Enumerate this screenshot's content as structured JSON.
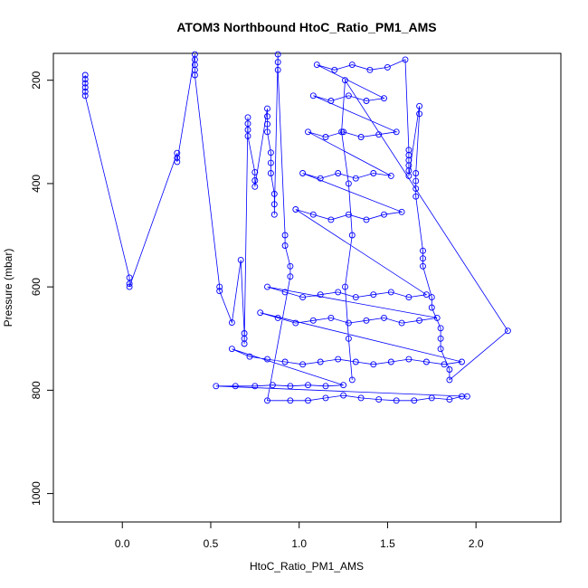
{
  "chart_data": {
    "type": "scatter",
    "title": "ATOM3 Northbound HtoC_Ratio_PM1_AMS",
    "xlabel": "HtoC_Ratio_PM1_AMS",
    "ylabel": "Pressure (mbar)",
    "xlim": [
      -0.39,
      2.48
    ],
    "ylim": [
      1055,
      148
    ],
    "y_reversed": true,
    "x_ticks": [
      0.0,
      0.5,
      1.0,
      1.5,
      2.0
    ],
    "x_tick_labels": [
      "0.0",
      "0.5",
      "1.0",
      "1.5",
      "2.0"
    ],
    "y_ticks": [
      200,
      400,
      600,
      800,
      1000
    ],
    "y_tick_labels": [
      "200",
      "400",
      "600",
      "800",
      "1000"
    ],
    "grid": false,
    "legend": "none",
    "marker": "open-circle",
    "connected": true,
    "series": [
      {
        "color": "#0000ff",
        "points": [
          [
            -0.21,
            190
          ],
          [
            -0.21,
            198
          ],
          [
            -0.21,
            206
          ],
          [
            -0.21,
            214
          ],
          [
            -0.21,
            222
          ],
          [
            -0.21,
            230
          ],
          [
            0.04,
            582
          ],
          [
            0.04,
            594
          ],
          [
            0.04,
            600
          ],
          [
            0.31,
            341
          ],
          [
            0.31,
            350
          ],
          [
            0.31,
            358
          ],
          [
            0.41,
            150
          ],
          [
            0.41,
            160
          ],
          [
            0.41,
            170
          ],
          [
            0.41,
            180
          ],
          [
            0.41,
            190
          ],
          [
            0.55,
            600
          ],
          [
            0.55,
            608
          ],
          [
            0.62,
            669
          ],
          [
            0.67,
            548
          ],
          [
            0.69,
            690
          ],
          [
            0.69,
            700
          ],
          [
            0.69,
            710
          ],
          [
            0.71,
            272
          ],
          [
            0.71,
            284
          ],
          [
            0.71,
            296
          ],
          [
            0.71,
            308
          ],
          [
            0.75,
            378
          ],
          [
            0.75,
            394
          ],
          [
            0.75,
            406
          ],
          [
            0.82,
            255
          ],
          [
            0.82,
            270
          ],
          [
            0.82,
            285
          ],
          [
            0.82,
            300
          ],
          [
            0.84,
            340
          ],
          [
            0.84,
            360
          ],
          [
            0.84,
            380
          ],
          [
            0.86,
            420
          ],
          [
            0.86,
            440
          ],
          [
            0.86,
            460
          ],
          [
            0.88,
            150
          ],
          [
            0.88,
            165
          ],
          [
            0.88,
            180
          ],
          [
            0.92,
            500
          ],
          [
            0.92,
            520
          ],
          [
            0.95,
            560
          ],
          [
            0.95,
            580
          ],
          [
            0.82,
            820
          ],
          [
            0.95,
            820
          ],
          [
            1.05,
            820
          ],
          [
            1.15,
            815
          ],
          [
            1.25,
            810
          ],
          [
            1.35,
            815
          ],
          [
            1.45,
            818
          ],
          [
            1.55,
            820
          ],
          [
            1.65,
            820
          ],
          [
            1.75,
            815
          ],
          [
            1.85,
            818
          ],
          [
            1.92,
            812
          ],
          [
            1.95,
            812
          ],
          [
            0.53,
            792
          ],
          [
            0.64,
            792
          ],
          [
            0.75,
            792
          ],
          [
            0.85,
            790
          ],
          [
            0.95,
            792
          ],
          [
            1.05,
            790
          ],
          [
            1.15,
            792
          ],
          [
            1.25,
            790
          ],
          [
            0.62,
            720
          ],
          [
            0.72,
            735
          ],
          [
            0.82,
            740
          ],
          [
            0.92,
            745
          ],
          [
            1.02,
            750
          ],
          [
            1.12,
            745
          ],
          [
            1.22,
            740
          ],
          [
            1.32,
            745
          ],
          [
            1.42,
            750
          ],
          [
            1.52,
            745
          ],
          [
            1.62,
            740
          ],
          [
            1.72,
            745
          ],
          [
            1.82,
            750
          ],
          [
            1.92,
            745
          ],
          [
            0.78,
            650
          ],
          [
            0.88,
            660
          ],
          [
            0.98,
            670
          ],
          [
            1.08,
            665
          ],
          [
            1.18,
            660
          ],
          [
            1.28,
            670
          ],
          [
            1.38,
            665
          ],
          [
            1.48,
            660
          ],
          [
            1.58,
            670
          ],
          [
            1.68,
            665
          ],
          [
            1.78,
            660
          ],
          [
            0.82,
            600
          ],
          [
            0.92,
            610
          ],
          [
            1.02,
            620
          ],
          [
            1.12,
            615
          ],
          [
            1.22,
            610
          ],
          [
            1.32,
            620
          ],
          [
            1.42,
            615
          ],
          [
            1.52,
            610
          ],
          [
            1.62,
            620
          ],
          [
            1.72,
            615
          ],
          [
            0.98,
            450
          ],
          [
            1.08,
            460
          ],
          [
            1.18,
            470
          ],
          [
            1.28,
            460
          ],
          [
            1.38,
            470
          ],
          [
            1.48,
            460
          ],
          [
            1.58,
            455
          ],
          [
            1.02,
            380
          ],
          [
            1.12,
            390
          ],
          [
            1.22,
            380
          ],
          [
            1.32,
            390
          ],
          [
            1.42,
            380
          ],
          [
            1.52,
            385
          ],
          [
            1.05,
            300
          ],
          [
            1.15,
            310
          ],
          [
            1.25,
            300
          ],
          [
            1.35,
            310
          ],
          [
            1.45,
            305
          ],
          [
            1.55,
            300
          ],
          [
            1.08,
            230
          ],
          [
            1.18,
            240
          ],
          [
            1.28,
            230
          ],
          [
            1.38,
            240
          ],
          [
            1.48,
            235
          ],
          [
            1.1,
            170
          ],
          [
            1.2,
            180
          ],
          [
            1.3,
            170
          ],
          [
            1.4,
            180
          ],
          [
            1.5,
            175
          ],
          [
            1.6,
            160
          ],
          [
            1.62,
            335
          ],
          [
            1.62,
            345
          ],
          [
            1.62,
            355
          ],
          [
            1.62,
            365
          ],
          [
            1.62,
            375
          ],
          [
            1.62,
            385
          ],
          [
            1.68,
            250
          ],
          [
            1.68,
            265
          ],
          [
            1.66,
            380
          ],
          [
            1.66,
            395
          ],
          [
            1.66,
            410
          ],
          [
            1.66,
            425
          ],
          [
            1.7,
            530
          ],
          [
            1.7,
            545
          ],
          [
            1.7,
            560
          ],
          [
            1.75,
            620
          ],
          [
            1.75,
            640
          ],
          [
            1.8,
            680
          ],
          [
            1.8,
            700
          ],
          [
            1.8,
            720
          ],
          [
            1.85,
            760
          ],
          [
            1.85,
            780
          ],
          [
            2.18,
            685
          ],
          [
            1.26,
            200
          ],
          [
            1.24,
            300
          ],
          [
            1.28,
            400
          ],
          [
            1.3,
            500
          ],
          [
            1.26,
            600
          ],
          [
            1.28,
            700
          ],
          [
            1.3,
            780
          ]
        ]
      }
    ]
  }
}
